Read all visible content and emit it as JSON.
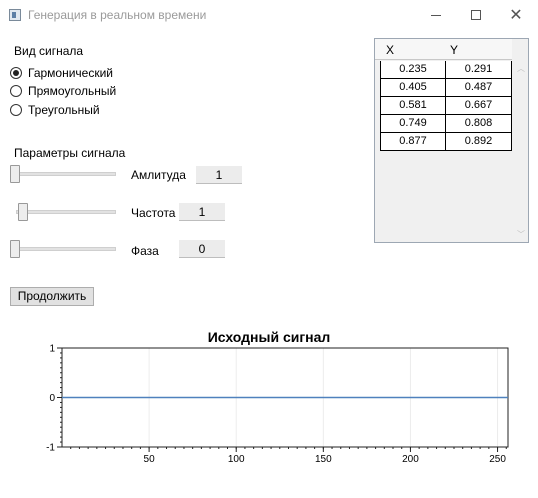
{
  "window": {
    "title": "Генерация в реальном времени",
    "controls": [
      "minimize-icon",
      "maximize-icon",
      "close-icon"
    ]
  },
  "signal_type": {
    "label": "Вид сигнала",
    "options": [
      {
        "label": "Гармонический",
        "selected": true
      },
      {
        "label": "Прямоугольный",
        "selected": false
      },
      {
        "label": "Треугольный",
        "selected": false
      }
    ]
  },
  "params": {
    "label": "Параметры сигнала",
    "amplitude": {
      "label": "Амлитуда",
      "value": "1"
    },
    "frequency": {
      "label": "Частота",
      "value": "1"
    },
    "phase": {
      "label": "Фаза",
      "value": "0"
    }
  },
  "continue_button": "Продолжить",
  "table": {
    "headers": [
      "X",
      "Y"
    ],
    "rows": [
      [
        "0.235",
        "0.291"
      ],
      [
        "0.405",
        "0.487"
      ],
      [
        "0.581",
        "0.667"
      ],
      [
        "0.749",
        "0.808"
      ],
      [
        "0.877",
        "0.892"
      ]
    ]
  },
  "chart_data": {
    "type": "line",
    "title": "Исходный сигнал",
    "xlabel": "",
    "ylabel": "",
    "xlim": [
      0,
      256
    ],
    "ylim": [
      -1,
      1
    ],
    "x_ticks": [
      50,
      100,
      150,
      200,
      250
    ],
    "y_ticks": [
      1,
      0,
      -1
    ],
    "grid": true,
    "series": [
      {
        "color": "#4f81bd",
        "x": [
          0,
          256
        ],
        "y": [
          0,
          0
        ]
      }
    ]
  }
}
